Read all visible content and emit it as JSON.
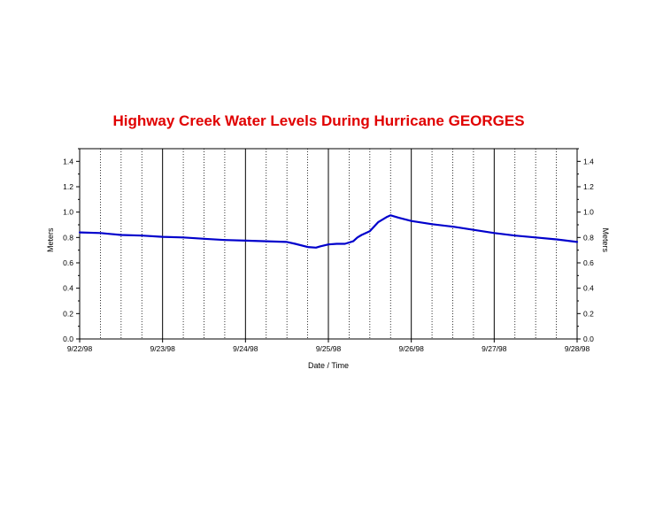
{
  "chart_data": {
    "type": "line",
    "title": "Highway Creek Water Levels During Hurricane GEORGES",
    "xlabel": "Date / Time",
    "ylabel": "Meters",
    "ylabel_right": "Meters",
    "x_tick_labels": [
      "9/22/98",
      "9/23/98",
      "9/24/98",
      "9/25/98",
      "9/26/98",
      "9/27/98",
      "9/28/98"
    ],
    "y_tick_labels": [
      "0.0",
      "0.2",
      "0.4",
      "0.6",
      "0.8",
      "1.0",
      "1.2",
      "1.4"
    ],
    "y_ticks": [
      0,
      0.2,
      0.4,
      0.6,
      0.8,
      1.0,
      1.2,
      1.4
    ],
    "xlim_days": [
      0,
      6
    ],
    "ylim": [
      0,
      1.5
    ],
    "grid": "vertical lines: solid at day boundaries, dotted every 6 hours",
    "series": [
      {
        "color": "#0000cc",
        "x_days": [
          0,
          0.25,
          0.5,
          0.75,
          1.0,
          1.25,
          1.5,
          1.75,
          2.0,
          2.25,
          2.5,
          2.6,
          2.75,
          2.85,
          2.9,
          3.0,
          3.1,
          3.2,
          3.3,
          3.35,
          3.4,
          3.5,
          3.6,
          3.7,
          3.75,
          3.85,
          4.0,
          4.25,
          4.5,
          4.75,
          5.0,
          5.25,
          5.5,
          5.75,
          6.0
        ],
        "values": [
          0.84,
          0.835,
          0.82,
          0.815,
          0.805,
          0.8,
          0.79,
          0.78,
          0.775,
          0.77,
          0.765,
          0.75,
          0.725,
          0.72,
          0.73,
          0.745,
          0.75,
          0.75,
          0.77,
          0.8,
          0.82,
          0.85,
          0.92,
          0.96,
          0.975,
          0.955,
          0.93,
          0.905,
          0.885,
          0.86,
          0.835,
          0.815,
          0.8,
          0.785,
          0.765
        ]
      }
    ]
  }
}
